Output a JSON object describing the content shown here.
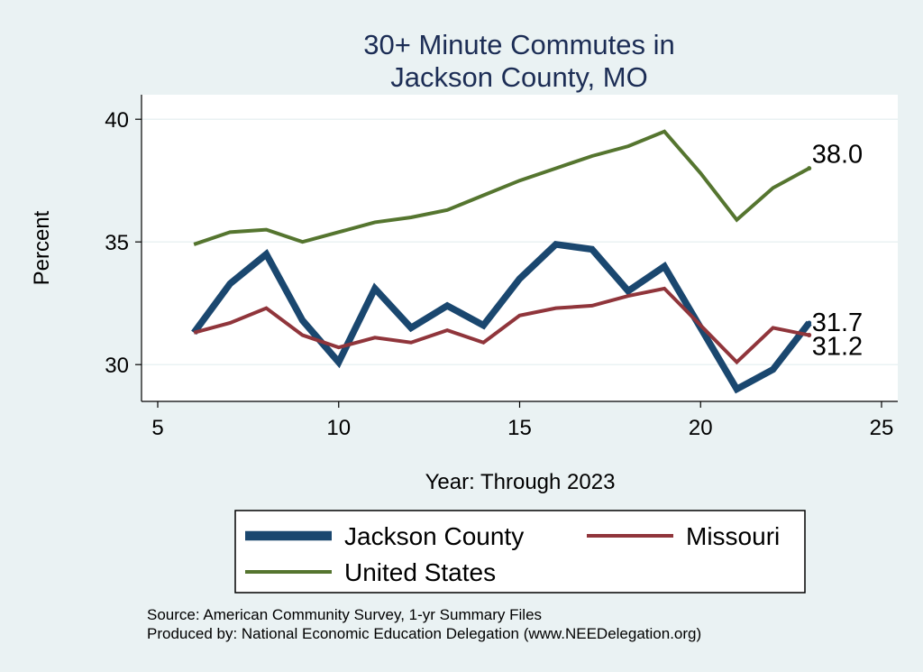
{
  "chart_data": {
    "type": "line",
    "title": [
      "30+ Minute Commutes in",
      "Jackson County, MO"
    ],
    "xlabel": "Year: Through 2023",
    "ylabel": "Percent",
    "xlim": [
      5,
      25
    ],
    "ylim": [
      28.5,
      41
    ],
    "xticks": [
      5,
      10,
      15,
      20,
      25
    ],
    "yticks": [
      30,
      35,
      40
    ],
    "grid": true,
    "x": [
      6,
      7,
      8,
      9,
      10,
      11,
      12,
      13,
      14,
      15,
      16,
      17,
      18,
      19,
      20,
      21,
      22,
      23
    ],
    "series": [
      {
        "name": "Jackson County",
        "color": "#1a476f",
        "values": [
          31.3,
          33.3,
          34.5,
          31.8,
          30.1,
          33.1,
          31.5,
          32.4,
          31.6,
          33.5,
          34.9,
          34.7,
          33.0,
          34.0,
          31.5,
          29.0,
          29.8,
          31.7
        ],
        "end_label": "31.7"
      },
      {
        "name": "Missouri",
        "color": "#90353b",
        "values": [
          31.3,
          31.7,
          32.3,
          31.2,
          30.7,
          31.1,
          30.9,
          31.4,
          30.9,
          32.0,
          32.3,
          32.4,
          32.8,
          33.1,
          31.6,
          30.1,
          31.5,
          31.2
        ],
        "end_label": "31.2"
      },
      {
        "name": "United States",
        "color": "#55752f",
        "values": [
          34.9,
          35.4,
          35.5,
          35.0,
          35.4,
          35.8,
          36.0,
          36.3,
          36.9,
          37.5,
          38.0,
          38.5,
          38.9,
          39.5,
          37.8,
          35.9,
          37.2,
          38.0
        ],
        "end_label": "38.0"
      }
    ],
    "legend": [
      "Jackson County",
      "Missouri",
      "United States"
    ],
    "legend_position": "bottom"
  },
  "notes": [
    "Source: American Community Survey, 1-yr Summary Files",
    "Produced by: National Economic Education Delegation (www.NEEDelegation.org)"
  ]
}
